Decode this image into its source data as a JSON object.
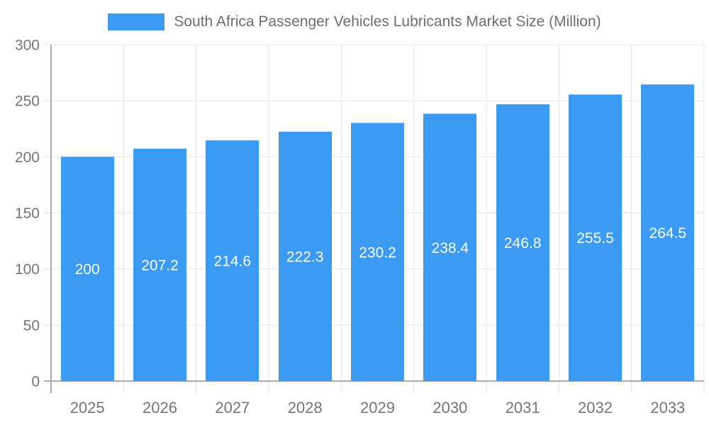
{
  "chart_data": {
    "type": "bar",
    "title": "South Africa Passenger Vehicles Lubricants Market Size (Million)",
    "categories": [
      "2025",
      "2026",
      "2027",
      "2028",
      "2029",
      "2030",
      "2031",
      "2032",
      "2033"
    ],
    "values": [
      200,
      207.2,
      214.6,
      222.3,
      230.2,
      238.4,
      246.8,
      255.5,
      264.5
    ],
    "bar_labels": [
      "200",
      "207.2",
      "214.6",
      "222.3",
      "230.2",
      "238.4",
      "246.8",
      "255.5",
      "264.5"
    ],
    "xlabel": "",
    "ylabel": "",
    "ylim": [
      0,
      300
    ],
    "yticks": [
      0,
      50,
      100,
      150,
      200,
      250,
      300
    ],
    "grid": true,
    "legend_position": "top-center",
    "value_labels_inside_bars": true,
    "colors": {
      "bar": "#3B9AF2",
      "bar_label_text": "#FFFFFF",
      "axis_line": "#ABABAB",
      "gridline": "#E4E4E4",
      "tick_mark": "#E0E0E0",
      "tick_label_text": "#757575",
      "title_text": "#6E6E6E",
      "background": "#FFFFFF"
    }
  }
}
